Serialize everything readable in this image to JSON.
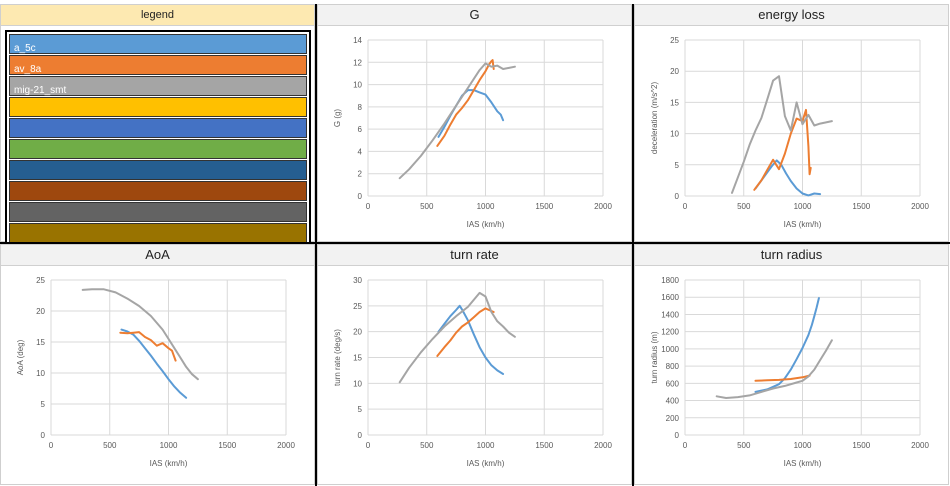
{
  "legend": {
    "title": "legend",
    "entries": [
      {
        "label": "a_5c",
        "color": "#5b9bd5"
      },
      {
        "label": "av_8a",
        "color": "#ed7d31"
      },
      {
        "label": "mig-21_smt",
        "color": "#a5a5a5"
      },
      {
        "label": "",
        "color": "#ffc000"
      },
      {
        "label": "",
        "color": "#4472c4"
      },
      {
        "label": "",
        "color": "#70ad47"
      },
      {
        "label": "",
        "color": "#255e91"
      },
      {
        "label": "",
        "color": "#9e480e"
      },
      {
        "label": "",
        "color": "#636363"
      },
      {
        "label": "",
        "color": "#997300"
      }
    ]
  },
  "chart_data": [
    {
      "id": "g",
      "type": "line",
      "title": "G",
      "xlabel": "IAS (km/h)",
      "ylabel": "G (g)",
      "xlim": [
        0,
        2000
      ],
      "ylim": [
        0,
        14
      ],
      "xticks": [
        0,
        500,
        1000,
        1500,
        2000
      ],
      "xtick_labels": [
        "0",
        "500",
        "1000",
        "1500",
        "2000"
      ],
      "yticks": [
        0,
        2,
        4,
        6,
        8,
        10,
        12,
        14
      ],
      "ytick_labels": [
        "0",
        "2",
        "4",
        "6",
        "8",
        "10",
        "12",
        "14"
      ],
      "grid": true,
      "series": [
        {
          "name": "a_5c",
          "color": "#5b9bd5",
          "x": [
            600,
            650,
            700,
            750,
            800,
            850,
            900,
            950,
            1000,
            1050,
            1100,
            1130,
            1150
          ],
          "y": [
            5.3,
            6.2,
            7.2,
            8.1,
            9.0,
            9.5,
            9.5,
            9.3,
            9.1,
            8.4,
            7.6,
            7.3,
            6.8
          ]
        },
        {
          "name": "av_8a",
          "color": "#ed7d31",
          "x": [
            590,
            650,
            700,
            750,
            800,
            850,
            900,
            950,
            1000,
            1030,
            1050,
            1060,
            1070
          ],
          "y": [
            4.5,
            5.4,
            6.4,
            7.3,
            7.9,
            8.6,
            9.5,
            10.4,
            11.2,
            11.8,
            12.1,
            12.2,
            11.4
          ]
        },
        {
          "name": "mig-21_smt",
          "color": "#a5a5a5",
          "x": [
            270,
            350,
            450,
            550,
            650,
            750,
            850,
            950,
            1000,
            1050,
            1100,
            1150,
            1200,
            1250
          ],
          "y": [
            1.6,
            2.4,
            3.6,
            5.0,
            6.5,
            8.1,
            9.7,
            11.3,
            11.9,
            11.6,
            11.7,
            11.4,
            11.5,
            11.6
          ]
        }
      ]
    },
    {
      "id": "energy",
      "type": "line",
      "title": "energy loss",
      "xlabel": "IAS (km/h)",
      "ylabel": "deceleration (m/s^2)",
      "xlim": [
        0,
        2000
      ],
      "ylim": [
        0,
        25
      ],
      "xticks": [
        0,
        500,
        1000,
        1500,
        2000
      ],
      "xtick_labels": [
        "0",
        "500",
        "1000",
        "1500",
        "2000"
      ],
      "yticks": [
        0,
        5,
        10,
        15,
        20,
        25
      ],
      "ytick_labels": [
        "0",
        "5",
        "10",
        "15",
        "20",
        "25"
      ],
      "grid": true,
      "series": [
        {
          "name": "a_5c",
          "color": "#5b9bd5",
          "x": [
            600,
            650,
            700,
            740,
            780,
            820,
            860,
            900,
            950,
            1000,
            1050,
            1100,
            1150
          ],
          "y": [
            1.2,
            2.5,
            3.8,
            4.8,
            5.7,
            5.0,
            3.6,
            2.4,
            1.2,
            0.4,
            0.1,
            0.4,
            0.3
          ]
        },
        {
          "name": "av_8a",
          "color": "#ed7d31",
          "x": [
            590,
            650,
            700,
            750,
            800,
            850,
            900,
            950,
            1000,
            1030,
            1050,
            1060,
            1070
          ],
          "y": [
            1.0,
            2.5,
            4.2,
            5.8,
            4.3,
            6.8,
            10.0,
            12.4,
            12.0,
            13.8,
            8.0,
            3.5,
            4.5
          ]
        },
        {
          "name": "mig-21_smt",
          "color": "#a5a5a5",
          "x": [
            400,
            450,
            500,
            550,
            600,
            650,
            700,
            750,
            800,
            850,
            900,
            950,
            1000,
            1050,
            1100,
            1150,
            1200,
            1250
          ],
          "y": [
            0.5,
            3.0,
            5.5,
            8.2,
            10.5,
            12.5,
            15.5,
            18.5,
            19.2,
            12.8,
            10.5,
            15.0,
            11.5,
            13.0,
            11.3,
            11.6,
            11.8,
            12.0
          ]
        }
      ]
    },
    {
      "id": "aoa",
      "type": "line",
      "title": "AoA",
      "xlabel": "IAS (km/h)",
      "ylabel": "AoA (deg)",
      "xlim": [
        0,
        2000
      ],
      "ylim": [
        0,
        25
      ],
      "xticks": [
        0,
        500,
        1000,
        1500,
        2000
      ],
      "xtick_labels": [
        "0",
        "500",
        "1000",
        "1500",
        "2000"
      ],
      "yticks": [
        0,
        5,
        10,
        15,
        20,
        25
      ],
      "ytick_labels": [
        "0",
        "5",
        "10",
        "15",
        "20",
        "25"
      ],
      "grid": true,
      "series": [
        {
          "name": "a_5c",
          "color": "#5b9bd5",
          "x": [
            600,
            650,
            700,
            750,
            800,
            850,
            900,
            950,
            1000,
            1050,
            1100,
            1150
          ],
          "y": [
            17.0,
            16.7,
            16.2,
            15.2,
            14.0,
            12.8,
            11.5,
            10.3,
            9.0,
            7.8,
            6.8,
            6.0
          ]
        },
        {
          "name": "av_8a",
          "color": "#ed7d31",
          "x": [
            590,
            650,
            700,
            750,
            800,
            850,
            900,
            950,
            1000,
            1030,
            1060
          ],
          "y": [
            16.5,
            16.4,
            16.5,
            16.6,
            15.8,
            15.3,
            14.4,
            14.8,
            14.0,
            13.6,
            12.0
          ]
        },
        {
          "name": "mig-21_smt",
          "color": "#a5a5a5",
          "x": [
            270,
            350,
            450,
            550,
            650,
            750,
            850,
            950,
            1000,
            1050,
            1100,
            1150,
            1200,
            1250
          ],
          "y": [
            23.4,
            23.5,
            23.5,
            23.0,
            22.0,
            20.8,
            19.2,
            17.0,
            15.5,
            14.0,
            12.5,
            11.0,
            9.8,
            9.0
          ]
        }
      ]
    },
    {
      "id": "turnrate",
      "type": "line",
      "title": "turn rate",
      "xlabel": "IAS (km/h)",
      "ylabel": "turn rate (deg/s)",
      "xlim": [
        0,
        2000
      ],
      "ylim": [
        0,
        30
      ],
      "xticks": [
        0,
        500,
        1000,
        1500,
        2000
      ],
      "xtick_labels": [
        "0",
        "500",
        "1000",
        "1500",
        "2000"
      ],
      "yticks": [
        0,
        5,
        10,
        15,
        20,
        25,
        30
      ],
      "ytick_labels": [
        "0",
        "5",
        "10",
        "15",
        "20",
        "25",
        "30"
      ],
      "grid": true,
      "series": [
        {
          "name": "a_5c",
          "color": "#5b9bd5",
          "x": [
            600,
            650,
            700,
            750,
            780,
            800,
            850,
            900,
            950,
            1000,
            1050,
            1100,
            1150
          ],
          "y": [
            20.0,
            21.5,
            23.0,
            24.2,
            25.0,
            24.3,
            22.2,
            19.5,
            17.0,
            15.0,
            13.5,
            12.5,
            11.8
          ]
        },
        {
          "name": "av_8a",
          "color": "#ed7d31",
          "x": [
            590,
            650,
            700,
            750,
            800,
            850,
            900,
            950,
            1000,
            1050,
            1070
          ],
          "y": [
            15.3,
            17.0,
            18.3,
            19.8,
            21.0,
            21.8,
            22.8,
            23.8,
            24.5,
            24.0,
            23.8
          ]
        },
        {
          "name": "mig-21_smt",
          "color": "#a5a5a5",
          "x": [
            270,
            350,
            450,
            550,
            650,
            750,
            850,
            950,
            1000,
            1050,
            1100,
            1150,
            1200,
            1250
          ],
          "y": [
            10.2,
            13.0,
            16.0,
            18.6,
            21.0,
            23.0,
            24.8,
            27.5,
            26.8,
            23.8,
            22.0,
            21.0,
            19.8,
            19.0
          ]
        }
      ]
    },
    {
      "id": "turnradius",
      "type": "line",
      "title": "turn radius",
      "xlabel": "IAS (km/h)",
      "ylabel": "turn radius (m)",
      "xlim": [
        0,
        2000
      ],
      "ylim": [
        0,
        1800
      ],
      "xticks": [
        0,
        500,
        1000,
        1500,
        2000
      ],
      "xtick_labels": [
        "0",
        "500",
        "1000",
        "1500",
        "2000"
      ],
      "yticks": [
        0,
        200,
        400,
        600,
        800,
        1000,
        1200,
        1400,
        1600,
        1800
      ],
      "ytick_labels": [
        "0",
        "200",
        "400",
        "600",
        "800",
        "1000",
        "1200",
        "1400",
        "1600",
        "1800"
      ],
      "grid": true,
      "series": [
        {
          "name": "a_5c",
          "color": "#5b9bd5",
          "x": [
            600,
            700,
            800,
            850,
            900,
            950,
            1000,
            1050,
            1080,
            1100,
            1120,
            1140
          ],
          "y": [
            500,
            530,
            590,
            660,
            760,
            880,
            1010,
            1160,
            1280,
            1380,
            1480,
            1590
          ]
        },
        {
          "name": "av_8a",
          "color": "#ed7d31",
          "x": [
            600,
            700,
            800,
            900,
            1000,
            1060
          ],
          "y": [
            630,
            635,
            640,
            650,
            670,
            690
          ]
        },
        {
          "name": "mig-21_smt",
          "color": "#a5a5a5",
          "x": [
            270,
            350,
            450,
            550,
            650,
            750,
            850,
            950,
            1000,
            1050,
            1100,
            1150,
            1200,
            1250
          ],
          "y": [
            450,
            430,
            440,
            460,
            500,
            540,
            570,
            610,
            630,
            680,
            760,
            870,
            980,
            1100
          ]
        }
      ]
    }
  ]
}
